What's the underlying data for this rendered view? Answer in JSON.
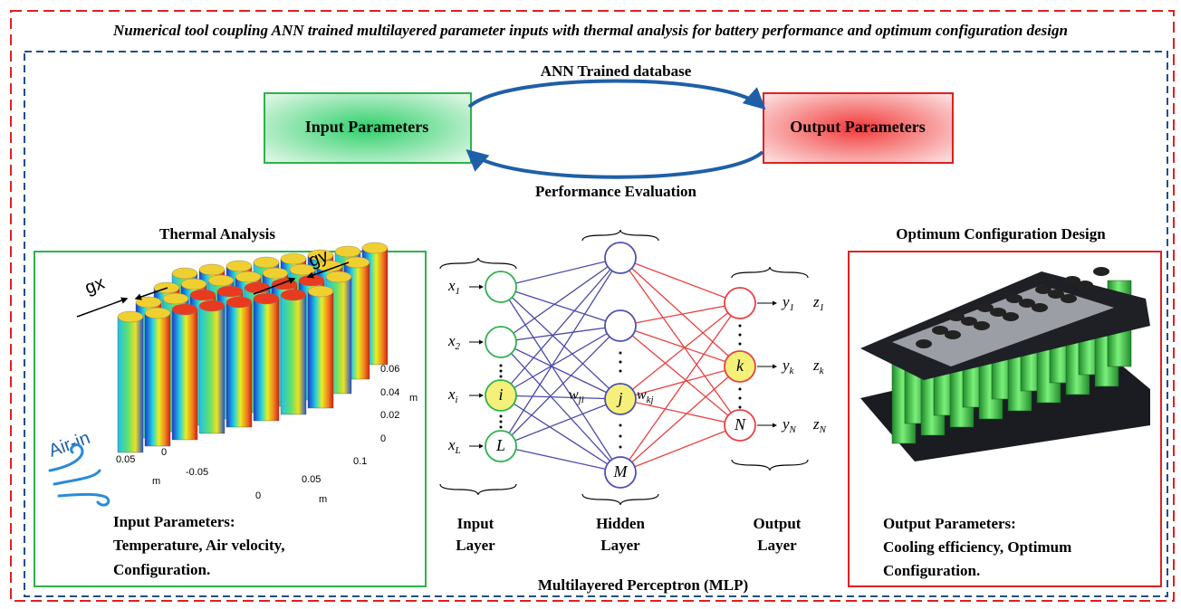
{
  "title": "Numerical tool coupling ANN trained multilayered parameter inputs with thermal analysis for battery performance and optimum configuration design",
  "ann": {
    "top_label": "ANN Trained database",
    "bottom_label": "Performance Evaluation",
    "input_box": "Input Parameters",
    "output_box": "Output Parameters"
  },
  "thermal": {
    "heading": "Thermal Analysis",
    "gap_labels": [
      "gx",
      "gy"
    ],
    "z_ticks": [
      "0.06",
      "0.04",
      "0.02",
      "0"
    ],
    "z_unit": "m",
    "y_ticks": [
      "0.05",
      "0",
      "-0.05"
    ],
    "y_unit": "m",
    "x_ticks": [
      "0",
      "0.05",
      "0.1"
    ],
    "x_unit": "m",
    "airflow": "Air-in",
    "caption": [
      "Input Parameters:",
      "Temperature, Air velocity,",
      "Configuration."
    ]
  },
  "mlp": {
    "input_var": "x",
    "inputs": [
      {
        "sub": "1"
      },
      {
        "sub": "2"
      },
      {
        "sub": "i",
        "node": "i"
      },
      {
        "sub": "L",
        "node": "L"
      }
    ],
    "hidden_nodes": [
      "j",
      "M"
    ],
    "weights": [
      {
        "var": "w",
        "sub": "ji"
      },
      {
        "var": "w",
        "sub": "kj"
      }
    ],
    "output_vars": [
      "y",
      "z"
    ],
    "outputs": [
      {
        "sub": "1"
      },
      {
        "sub": "k",
        "node": "k"
      },
      {
        "sub": "N",
        "node": "N"
      }
    ],
    "layers": [
      [
        "Input",
        "Layer"
      ],
      [
        "Hidden",
        "Layer"
      ],
      [
        "Output",
        "Layer"
      ]
    ],
    "caption": "Multilayered Perceptron (MLP)"
  },
  "design": {
    "heading": "Optimum Configuration Design",
    "caption": [
      "Output Parameters:",
      "Cooling efficiency, Optimum",
      "Configuration."
    ]
  }
}
